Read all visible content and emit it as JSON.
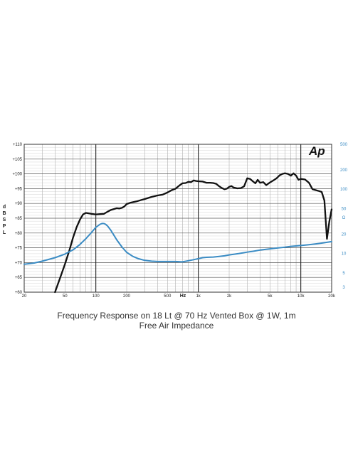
{
  "chart_data": {
    "type": "line",
    "title": "Frequency Response on 18 Lt @ 70 Hz Vented Box @ 1W, 1m",
    "subtitle": "Free Air Impedance",
    "logo_text": "Ap",
    "xlabel": "Hz",
    "ylabel": "dB SPL",
    "y2label": "Ω",
    "x_scale": "log",
    "y2_scale": "log",
    "xlim": [
      20,
      20000
    ],
    "ylim": [
      60,
      110
    ],
    "y2lim": [
      2.5,
      500
    ],
    "grid": true,
    "x_ticks": [
      "20",
      "50",
      "100",
      "200",
      "500",
      "1k",
      "2k",
      "5k",
      "10k",
      "20k"
    ],
    "y_ticks": [
      "+60",
      "+65",
      "+70",
      "+75",
      "+80",
      "+85",
      "+90",
      "+95",
      "+100",
      "+105",
      "+110"
    ],
    "y2_ticks": [
      "3",
      "5",
      "10",
      "20",
      "50",
      "100",
      "200",
      "500"
    ],
    "colors": {
      "spl": "#111111",
      "impedance": "#3b8cc4",
      "grid": "#888888"
    },
    "series": [
      {
        "axis": "left",
        "x": [
          40,
          45,
          50,
          55,
          60,
          65,
          70,
          75,
          80,
          90,
          100,
          110,
          120,
          130,
          140,
          150,
          160,
          170,
          180,
          190,
          200,
          220,
          250,
          280,
          300,
          350,
          400,
          450,
          500,
          550,
          600,
          650,
          700,
          750,
          800,
          850,
          900,
          950,
          1000,
          1100,
          1200,
          1300,
          1400,
          1500,
          1600,
          1700,
          1800,
          1900,
          2000,
          2100,
          2200,
          2400,
          2600,
          2800,
          3000,
          3200,
          3400,
          3600,
          3800,
          4000,
          4300,
          4600,
          5000,
          5400,
          5800,
          6200,
          6600,
          7000,
          7500,
          8000,
          8500,
          9000,
          9500,
          10000,
          11000,
          12000,
          13000,
          14000,
          15000,
          16000,
          17000,
          18000,
          19000,
          20000
        ],
        "y": [
          60,
          65,
          69.5,
          74,
          78.5,
          82,
          84.5,
          86.3,
          86.8,
          86.5,
          86.3,
          86.4,
          86.5,
          87.2,
          87.8,
          88.1,
          88.4,
          88.3,
          88.5,
          89,
          89.8,
          90.3,
          90.7,
          91.2,
          91.5,
          92.2,
          92.7,
          93,
          93.7,
          94.5,
          95,
          96,
          96.8,
          96.9,
          97.3,
          97.2,
          97.8,
          97.6,
          97.5,
          97.4,
          97,
          97,
          96.9,
          96.6,
          95.8,
          95.2,
          94.8,
          95,
          95.6,
          95.9,
          95.4,
          95.1,
          95.2,
          95.8,
          98.5,
          98.3,
          97.5,
          96.8,
          98,
          97,
          97.2,
          96.2,
          97.1,
          97.8,
          98.5,
          99.5,
          100,
          100.2,
          100,
          99.4,
          100.2,
          99.4,
          98,
          98.3,
          98.1,
          97,
          94.8,
          94.5,
          94.2,
          93.9,
          91,
          78,
          84,
          88
        ]
      },
      {
        "axis": "right",
        "x": [
          20,
          25,
          30,
          40,
          50,
          60,
          70,
          80,
          90,
          100,
          110,
          115,
          120,
          125,
          130,
          140,
          150,
          160,
          180,
          200,
          230,
          260,
          300,
          350,
          400,
          500,
          600,
          700,
          800,
          900,
          1000,
          1100,
          1200,
          1400,
          1600,
          1800,
          2000,
          2500,
          3000,
          3500,
          4000,
          5000,
          6000,
          7000,
          8000,
          10000,
          12000,
          14000,
          16000,
          18000,
          20000
        ],
        "y": [
          6.8,
          7.1,
          7.6,
          8.6,
          9.8,
          11.4,
          13.8,
          17,
          21,
          25.5,
          28.5,
          29.3,
          29.2,
          28.3,
          26.8,
          23,
          19.3,
          16.3,
          12.6,
          10.4,
          9,
          8.3,
          7.8,
          7.6,
          7.5,
          7.5,
          7.5,
          7.4,
          7.7,
          8,
          8.3,
          8.6,
          8.7,
          8.8,
          9,
          9.2,
          9.5,
          10,
          10.5,
          10.9,
          11.3,
          11.8,
          12.2,
          12.5,
          12.9,
          13.3,
          13.7,
          14.1,
          14.5,
          14.9,
          15.3
        ]
      }
    ]
  }
}
